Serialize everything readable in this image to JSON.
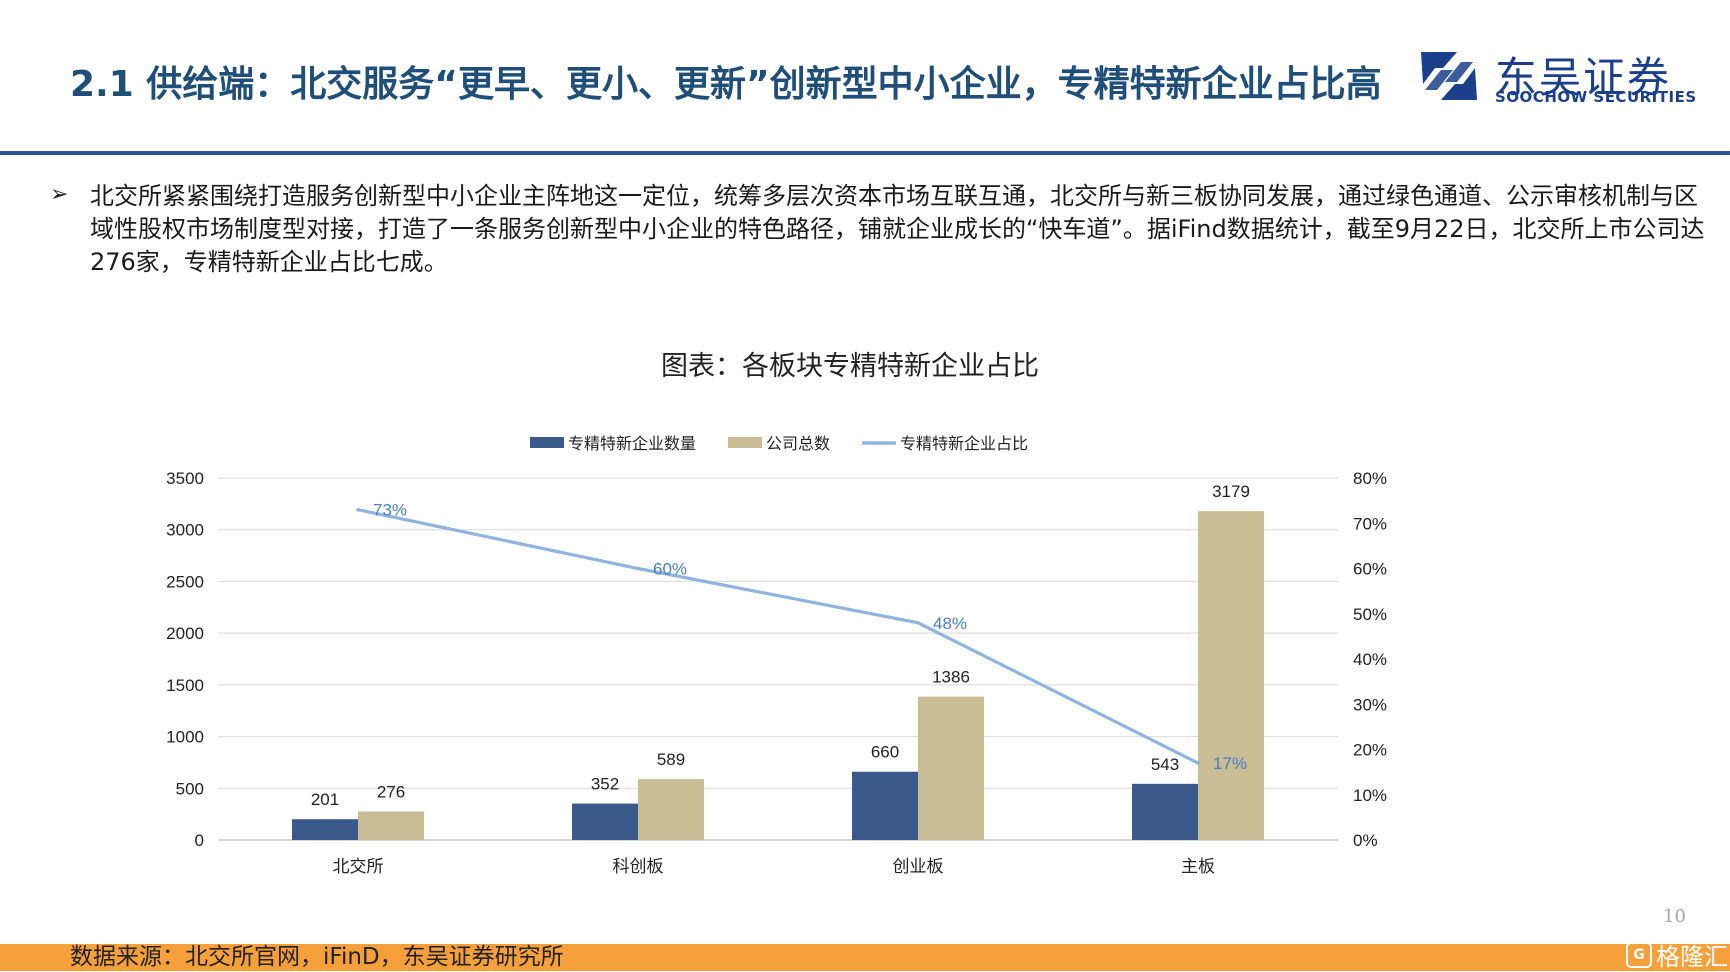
{
  "header": {
    "title": "2.1 供给端：北交服务“更早、更小、更新”创新型中小企业，专精特新企业占比高",
    "logo": {
      "cn": "东吴证券",
      "en": "SOOCHOW SECURITIES",
      "icon": "soochow-logo-icon",
      "color": "#1b3f8b"
    }
  },
  "bullet": {
    "icon": "arrow-bullet-icon",
    "text": "北交所紧紧围绕打造服务创新型中小企业主阵地这一定位，统筹多层次资本市场互联互通，北交所与新三板协同发展，通过绿色通道、公示审核机制与区域性股权市场制度型对接，打造了一条服务创新型中小企业的特色路径，铺就企业成长的“快车道”。据iFind数据统计，截至9月22日，北交所上市公司达276家，专精特新企业占比七成。"
  },
  "chart_title": "图表：各板块专精特新企业占比",
  "chart_data": {
    "type": "bar",
    "categories": [
      "北交所",
      "科创板",
      "创业板",
      "主板"
    ],
    "series": [
      {
        "name": "专精特新企业数量",
        "type": "bar",
        "axis": "left",
        "color": "#3a5a8c",
        "values": [
          201,
          352,
          660,
          543
        ],
        "labels": [
          "201",
          "352",
          "660",
          "543"
        ]
      },
      {
        "name": "公司总数",
        "type": "bar",
        "axis": "left",
        "color": "#c9bd96",
        "values": [
          276,
          589,
          1386,
          3179
        ],
        "labels": [
          "276",
          "589",
          "1386",
          "3179"
        ]
      },
      {
        "name": "专精特新企业占比",
        "type": "line",
        "axis": "right",
        "color": "#8fb4de",
        "label_color": "#4a7fc0",
        "values": [
          0.73,
          0.6,
          0.48,
          0.17
        ],
        "labels": [
          "73%",
          "60%",
          "48%",
          "17%"
        ]
      }
    ],
    "y_left": {
      "min": 0,
      "max": 3500,
      "ticks": [
        "0",
        "500",
        "1000",
        "1500",
        "2000",
        "2500",
        "3000",
        "3500"
      ]
    },
    "y_right": {
      "min": 0,
      "max": 0.8,
      "ticks": [
        "0%",
        "10%",
        "20%",
        "30%",
        "40%",
        "50%",
        "60%",
        "70%",
        "80%"
      ]
    },
    "grid": true,
    "legend_position": "top"
  },
  "footer": {
    "source": "数据来源：北交所官网，iFinD，东吴证券研究所",
    "page_number": "10",
    "watermark": "格隆汇",
    "watermark_icon": "G",
    "bar_color": "#f5a03a"
  }
}
